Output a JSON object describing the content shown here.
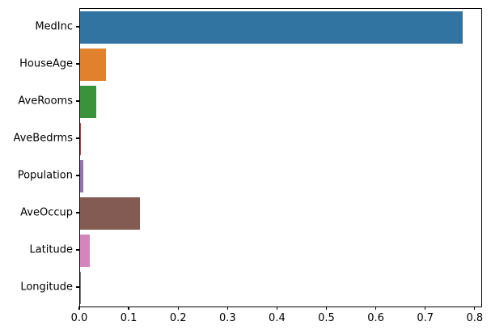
{
  "figure": {
    "background": "#ffffff",
    "text_color": "#000000",
    "spine_color": "#000000"
  },
  "chart_data": {
    "type": "bar",
    "orientation": "horizontal",
    "title": "",
    "xlabel": "",
    "ylabel": "",
    "categories": [
      "MedInc",
      "HouseAge",
      "AveRooms",
      "AveBedrms",
      "Population",
      "AveOccup",
      "Latitude",
      "Longitude"
    ],
    "values": [
      0.774,
      0.052,
      0.032,
      0.001,
      0.007,
      0.121,
      0.02,
      0.001
    ],
    "bar_colors": [
      "#3274a1",
      "#e1812c",
      "#3a923a",
      "#c03d3e",
      "#9372b2",
      "#845b53",
      "#d684bd",
      "#797979"
    ],
    "xlim": [
      0,
      0.8118
    ],
    "xticks": [
      0.0,
      0.1,
      0.2,
      0.3,
      0.4,
      0.5,
      0.6,
      0.7,
      0.8
    ],
    "xtick_labels": [
      "0.0",
      "0.1",
      "0.2",
      "0.3",
      "0.4",
      "0.5",
      "0.6",
      "0.7",
      "0.8"
    ],
    "grid": false,
    "legend": null
  }
}
